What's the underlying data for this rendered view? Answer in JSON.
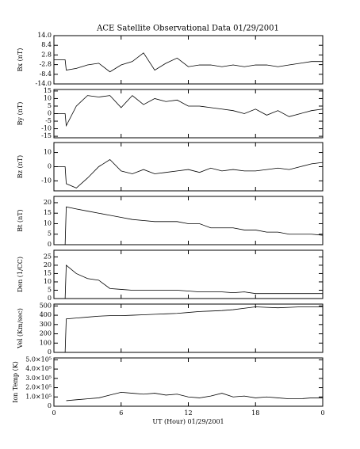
{
  "chart_data": [
    {
      "type": "line",
      "title": "ACE Satellite Observational Data  01/29/2001",
      "ylabel": "Bx (nT)",
      "color": "#000000",
      "x": [
        0,
        1,
        1.1,
        2,
        3,
        4,
        5,
        6,
        7,
        8,
        9,
        10,
        11,
        12,
        13,
        14,
        15,
        16,
        17,
        18,
        19,
        20,
        21,
        22,
        23,
        24
      ],
      "values": [
        0,
        0,
        -6,
        -5,
        -3,
        -2,
        -7,
        -3,
        -1,
        4,
        -6,
        -2,
        1,
        -4,
        -3,
        -3,
        -4,
        -3,
        -4,
        -3,
        -3,
        -4,
        -3,
        -2,
        -1,
        -1
      ],
      "xlim": [
        0,
        24
      ],
      "ylim": [
        -14,
        14
      ],
      "yticks": [
        {
          "value": 14,
          "label": "14.0"
        },
        8.4,
        2.8,
        -2.8,
        -8.4,
        {
          "value": -14,
          "label": "-14.0"
        }
      ]
    },
    {
      "type": "line",
      "ylabel": "By (nT)",
      "color": "#000000",
      "x": [
        0,
        1,
        1.1,
        2,
        3,
        4,
        5,
        6,
        7,
        8,
        9,
        10,
        11,
        12,
        13,
        14,
        15,
        16,
        17,
        18,
        19,
        20,
        21,
        22,
        23,
        24
      ],
      "values": [
        0,
        0,
        -8,
        5,
        12,
        11,
        12,
        4,
        12,
        6,
        10,
        8,
        9,
        5,
        5,
        4,
        3,
        2,
        0,
        3,
        -1,
        2,
        -2,
        0,
        2,
        3
      ],
      "xlim": [
        0,
        24
      ],
      "ylim": [
        -16,
        16
      ],
      "yticks": [
        15,
        10,
        5,
        0,
        -5,
        -10,
        -15
      ]
    },
    {
      "type": "line",
      "ylabel": "Bz (nT)",
      "color": "#000000",
      "x": [
        0,
        1,
        1.1,
        2,
        3,
        4,
        5,
        6,
        7,
        8,
        9,
        10,
        11,
        12,
        13,
        14,
        15,
        16,
        17,
        18,
        19,
        20,
        21,
        22,
        23,
        24
      ],
      "values": [
        0,
        0,
        -12,
        -15,
        -8,
        0,
        5,
        -3,
        -5,
        -2,
        -5,
        -4,
        -3,
        -2,
        -4,
        -1,
        -3,
        -2,
        -3,
        -3,
        -2,
        -1,
        -2,
        0,
        2,
        3
      ],
      "xlim": [
        0,
        24
      ],
      "ylim": [
        -17,
        17
      ],
      "yticks": [
        10,
        0,
        -10
      ]
    },
    {
      "type": "line",
      "ylabel": "Bt (nT)",
      "color": "#000000",
      "x": [
        0,
        1,
        1.1,
        2,
        3,
        4,
        5,
        6,
        7,
        8,
        9,
        10,
        11,
        12,
        13,
        14,
        15,
        16,
        17,
        18,
        19,
        20,
        21,
        22,
        23,
        24
      ],
      "values": [
        0,
        0,
        18,
        17,
        16,
        15,
        14,
        13,
        12,
        11.5,
        11,
        11,
        11,
        10,
        10,
        8,
        8,
        8,
        7,
        7,
        6,
        6,
        5,
        5,
        5,
        4.5
      ],
      "xlim": [
        0,
        24
      ],
      "ylim": [
        0,
        23
      ],
      "yticks": [
        0,
        5,
        10,
        15,
        20
      ]
    },
    {
      "type": "line",
      "ylabel": "Den (1/CC)",
      "color": "#000000",
      "x": [
        0,
        1,
        1.1,
        2,
        3,
        4,
        5,
        6,
        7,
        8,
        9,
        10,
        11,
        12,
        13,
        14,
        15,
        16,
        17,
        18,
        19,
        20,
        21,
        22,
        23,
        24
      ],
      "values": [
        0,
        0,
        20,
        15,
        12,
        11,
        6,
        5.5,
        5,
        5,
        5,
        5,
        5,
        4.5,
        4,
        4,
        4,
        3.5,
        4,
        3,
        3,
        3,
        3,
        3,
        3,
        3
      ],
      "xlim": [
        0,
        24
      ],
      "ylim": [
        0,
        29
      ],
      "yticks": [
        0,
        5,
        10,
        15,
        20,
        25
      ]
    },
    {
      "type": "line",
      "ylabel": "Vel (Km/sec)",
      "color": "#000000",
      "x": [
        0,
        1,
        1.1,
        2,
        3,
        4,
        5,
        6,
        7,
        8,
        9,
        10,
        11,
        12,
        13,
        14,
        15,
        16,
        17,
        18,
        19,
        20,
        21,
        22,
        23,
        24
      ],
      "values": [
        0,
        0,
        360,
        370,
        380,
        390,
        395,
        395,
        400,
        405,
        410,
        415,
        420,
        430,
        440,
        445,
        450,
        460,
        475,
        490,
        485,
        480,
        485,
        490,
        490,
        490
      ],
      "xlim": [
        0,
        24
      ],
      "ylim": [
        0,
        520
      ],
      "yticks": [
        0,
        100,
        200,
        300,
        400,
        500
      ]
    },
    {
      "type": "line",
      "ylabel": "Ion Temp (K)",
      "xlabel": "UT (Hour)  01/29/2001",
      "color": "#000000",
      "x": [
        0,
        1,
        1.1,
        2,
        3,
        4,
        5,
        6,
        7,
        8,
        9,
        10,
        11,
        12,
        13,
        14,
        15,
        16,
        17,
        18,
        19,
        20,
        21,
        22,
        23,
        24
      ],
      "values": [
        null,
        null,
        60000,
        70000,
        80000,
        90000,
        120000,
        150000,
        140000,
        130000,
        140000,
        120000,
        130000,
        100000,
        90000,
        110000,
        140000,
        100000,
        110000,
        90000,
        100000,
        90000,
        80000,
        80000,
        90000,
        90000
      ],
      "xlim": [
        0,
        24
      ],
      "ylim": [
        0,
        520000
      ],
      "yticks": [
        0,
        {
          "value": 100000,
          "label": "1.0×10⁵"
        },
        {
          "value": 200000,
          "label": "2.0×10⁵"
        },
        {
          "value": 300000,
          "label": "3.0×10⁵"
        },
        {
          "value": 400000,
          "label": "4.0×10⁵"
        },
        {
          "value": 500000,
          "label": "5.0×10⁵"
        }
      ],
      "xticks": [
        0,
        6,
        12,
        18,
        {
          "value": 24,
          "label": "0"
        }
      ]
    }
  ]
}
